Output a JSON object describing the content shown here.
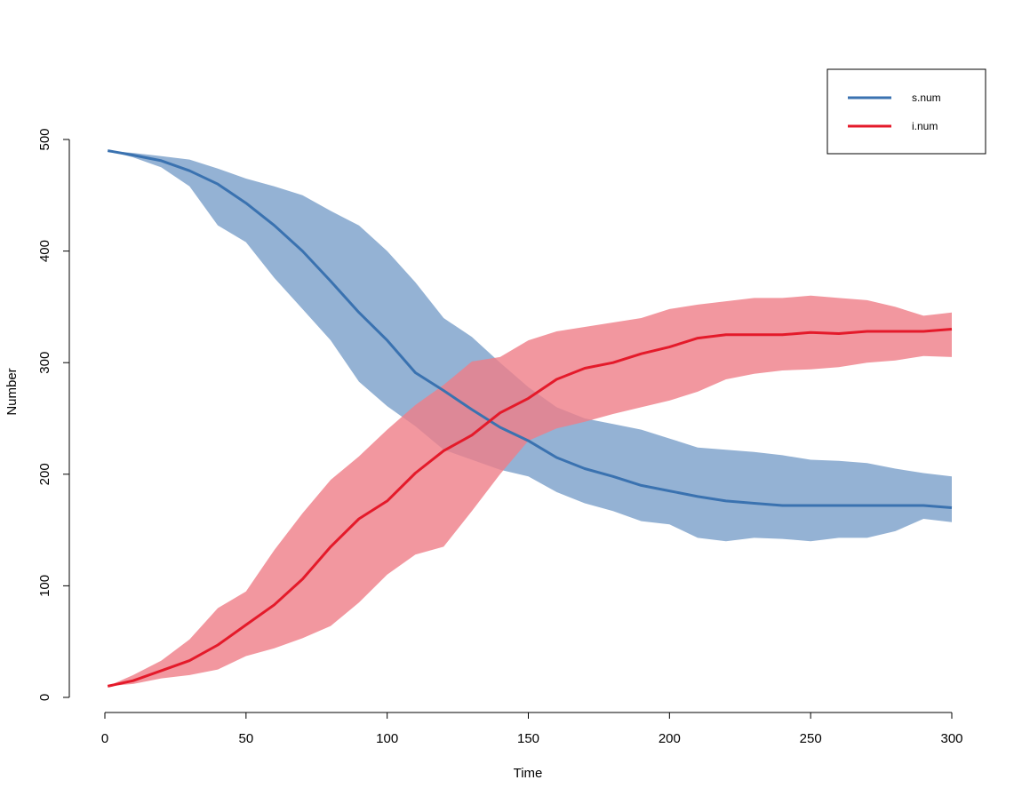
{
  "chart_data": {
    "type": "area",
    "title": "",
    "xlabel": "Time",
    "ylabel": "Number",
    "xlim": [
      0,
      300
    ],
    "ylim": [
      0,
      500
    ],
    "xticks": [
      0,
      50,
      100,
      150,
      200,
      250,
      300
    ],
    "yticks": [
      0,
      100,
      200,
      300,
      400,
      500
    ],
    "grid": false,
    "legend_position": "top-right",
    "x": [
      1,
      10,
      20,
      30,
      40,
      50,
      60,
      70,
      80,
      90,
      100,
      110,
      120,
      130,
      140,
      150,
      160,
      170,
      180,
      190,
      200,
      210,
      220,
      230,
      240,
      250,
      260,
      270,
      280,
      290,
      300
    ],
    "series": [
      {
        "name": "s.num",
        "color": "#3A72B0",
        "band_color": "#94B2D4",
        "values": [
          490,
          486,
          481,
          472,
          460,
          443,
          423,
          400,
          373,
          345,
          320,
          291,
          275,
          258,
          242,
          230,
          215,
          205,
          198,
          190,
          185,
          180,
          176,
          174,
          172,
          172,
          172,
          172,
          172,
          172,
          170
        ],
        "upper": [
          490,
          488,
          485,
          482,
          474,
          465,
          458,
          450,
          436,
          423,
          400,
          372,
          340,
          323,
          300,
          278,
          260,
          250,
          245,
          240,
          232,
          224,
          222,
          220,
          217,
          213,
          212,
          210,
          205,
          201,
          198
        ],
        "lower": [
          490,
          484,
          475,
          458,
          423,
          408,
          376,
          348,
          320,
          283,
          261,
          243,
          222,
          213,
          204,
          198,
          184,
          174,
          167,
          158,
          155,
          143,
          140,
          143,
          142,
          140,
          143,
          143,
          149,
          160,
          157
        ]
      },
      {
        "name": "i.num",
        "color": "#E41A2A",
        "band_color": "#EF7D87",
        "values": [
          10,
          15,
          24,
          33,
          47,
          65,
          83,
          106,
          135,
          160,
          176,
          201,
          221,
          235,
          255,
          268,
          285,
          295,
          300,
          308,
          314,
          322,
          325,
          325,
          325,
          327,
          326,
          328,
          328,
          328,
          330
        ],
        "upper": [
          10,
          20,
          33,
          52,
          80,
          95,
          132,
          165,
          195,
          216,
          240,
          262,
          280,
          301,
          305,
          320,
          328,
          332,
          336,
          340,
          348,
          352,
          355,
          358,
          358,
          360,
          358,
          356,
          350,
          342,
          345
        ],
        "lower": [
          10,
          12,
          17,
          20,
          25,
          37,
          44,
          53,
          64,
          85,
          110,
          128,
          135,
          167,
          200,
          230,
          241,
          247,
          254,
          260,
          266,
          274,
          285,
          290,
          293,
          294,
          296,
          300,
          302,
          306,
          305
        ]
      }
    ]
  }
}
